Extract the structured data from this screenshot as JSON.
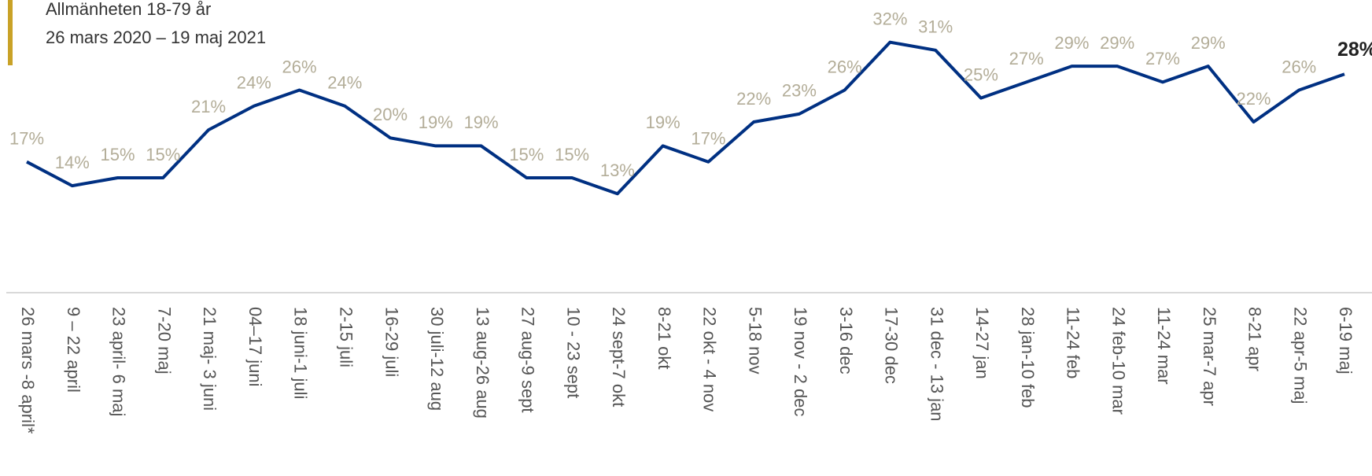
{
  "chart_data": {
    "type": "line",
    "title": "Allmänheten 18-79 år",
    "subtitle": "26 mars 2020 – 19 maj 2021",
    "categories": [
      "26 mars -8 april*",
      "9 – 22 april",
      "23 april- 6 maj",
      "7-20 maj",
      "21 maj- 3 juni",
      "04–17 juni",
      "18 juni-1 juli",
      "2-15 juli",
      "16-29 juli",
      "30 juli-12 aug",
      "13 aug-26 aug",
      "27 aug-9 sept",
      "10 - 23 sept",
      "24 sept-7 okt",
      "8-21 okt",
      "22 okt - 4 nov",
      "5-18 nov",
      "19 nov - 2 dec",
      "3-16 dec",
      "17-30 dec",
      "31 dec - 13 jan",
      "14-27 jan",
      "28 jan-10 feb",
      "11-24 feb",
      "24 feb-10 mar",
      "11-24 mar",
      "25 mar-7 apr",
      "8-21 apr",
      "22 apr-5 maj",
      "6-19 maj"
    ],
    "values": [
      17,
      14,
      15,
      15,
      21,
      24,
      26,
      24,
      20,
      19,
      19,
      15,
      15,
      13,
      19,
      17,
      22,
      23,
      26,
      32,
      31,
      25,
      27,
      29,
      29,
      27,
      29,
      22,
      26,
      28
    ],
    "value_labels": [
      "17%",
      "14%",
      "15%",
      "15%",
      "21%",
      "24%",
      "26%",
      "24%",
      "20%",
      "19%",
      "19%",
      "15%",
      "15%",
      "13%",
      "19%",
      "17%",
      "22%",
      "23%",
      "26%",
      "32%",
      "31%",
      "25%",
      "27%",
      "29%",
      "29%",
      "27%",
      "29%",
      "22%",
      "26%",
      "28%"
    ],
    "color": "#003082",
    "ylim": [
      0,
      37
    ]
  }
}
